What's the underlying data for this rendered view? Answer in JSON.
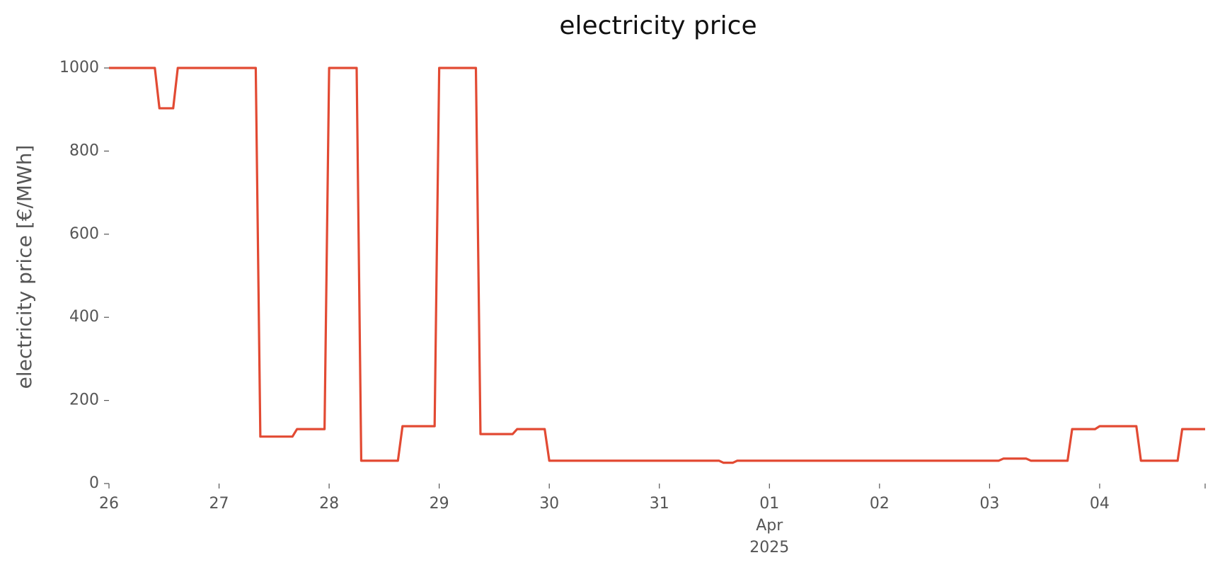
{
  "chart_data": {
    "type": "line",
    "title": "electricity price",
    "y_label": "electricity price [€/MWh]",
    "x": [
      "2025-03-26T00:00",
      "2025-03-26T10:00",
      "2025-03-26T11:00",
      "2025-03-26T14:00",
      "2025-03-26T15:00",
      "2025-03-27T08:00",
      "2025-03-27T09:00",
      "2025-03-27T16:00",
      "2025-03-27T17:00",
      "2025-03-27T23:00",
      "2025-03-28T00:00",
      "2025-03-28T06:00",
      "2025-03-28T07:00",
      "2025-03-28T15:00",
      "2025-03-28T16:00",
      "2025-03-28T23:00",
      "2025-03-29T00:00",
      "2025-03-29T08:00",
      "2025-03-29T09:00",
      "2025-03-29T16:00",
      "2025-03-29T17:00",
      "2025-03-29T23:00",
      "2025-03-30T00:00",
      "2025-03-31T13:00",
      "2025-03-31T14:00",
      "2025-03-31T16:00",
      "2025-03-31T17:00",
      "2025-04-03T02:00",
      "2025-04-03T03:00",
      "2025-04-03T08:00",
      "2025-04-03T09:00",
      "2025-04-03T17:00",
      "2025-04-03T18:00",
      "2025-04-03T23:00",
      "2025-04-04T00:00",
      "2025-04-04T08:00",
      "2025-04-04T09:00",
      "2025-04-04T17:00",
      "2025-04-04T18:00",
      "2025-04-04T23:00"
    ],
    "series": [
      {
        "name": "electricity price",
        "color": "#e24a33",
        "values": [
          1000,
          1000,
          903,
          903,
          1000,
          1000,
          113,
          113,
          131,
          131,
          1000,
          1000,
          55,
          55,
          138,
          138,
          1000,
          1000,
          119,
          119,
          131,
          131,
          55,
          55,
          50,
          50,
          55,
          55,
          60,
          60,
          55,
          55,
          131,
          131,
          138,
          138,
          55,
          55,
          131,
          131
        ]
      }
    ],
    "xlim": [
      "2025-03-26T00:00",
      "2025-04-04T23:00"
    ],
    "xticks": [
      {
        "value": "2025-03-26T00:00",
        "label": "26"
      },
      {
        "value": "2025-03-27T00:00",
        "label": "27"
      },
      {
        "value": "2025-03-28T00:00",
        "label": "28"
      },
      {
        "value": "2025-03-29T00:00",
        "label": "29"
      },
      {
        "value": "2025-03-30T00:00",
        "label": "30"
      },
      {
        "value": "2025-03-31T00:00",
        "label": "31"
      },
      {
        "value": "2025-04-01T00:00",
        "label": "01\nApr\n2025"
      },
      {
        "value": "2025-04-02T00:00",
        "label": "02"
      },
      {
        "value": "2025-04-03T00:00",
        "label": "03"
      },
      {
        "value": "2025-04-04T00:00",
        "label": "04"
      }
    ],
    "ylim": [
      0,
      1000
    ],
    "yticks": [
      0,
      200,
      400,
      600,
      800,
      1000
    ],
    "grid": false
  }
}
